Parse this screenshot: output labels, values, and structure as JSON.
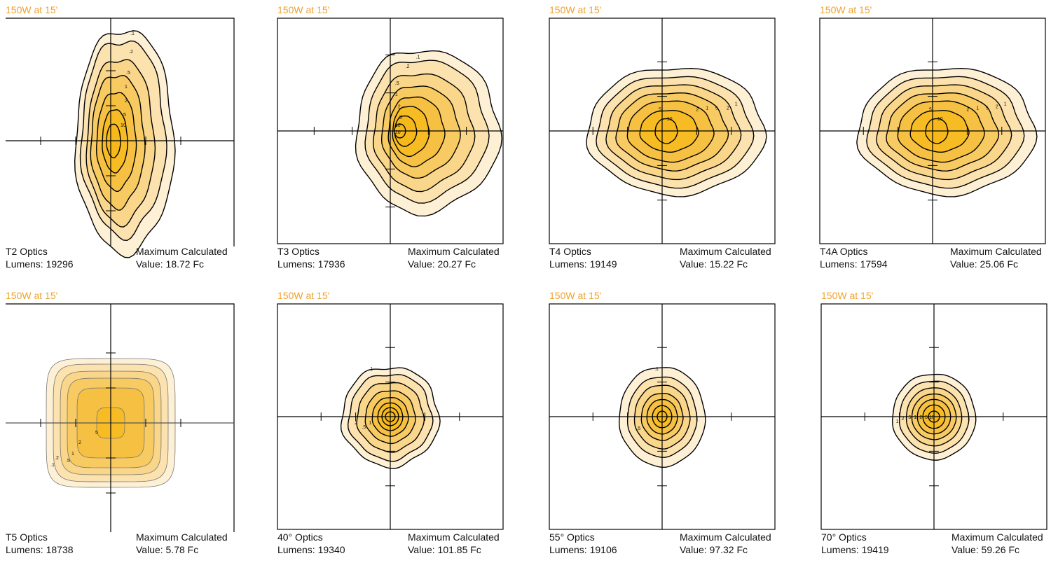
{
  "colors": {
    "heading": "#f0a22e",
    "fill_levels": [
      "#fdf0d5",
      "#fbe2ae",
      "#f9d689",
      "#f8ca62",
      "#f6c042",
      "#f7bb23",
      "#f6b81a"
    ]
  },
  "panels": [
    {
      "heading": "150W at 15'",
      "optics": "T2 Optics",
      "lumens": "Lumens: 19296",
      "max_label": "Maximum Calculated",
      "max_value": "Value: 18.72 Fc",
      "contour_labels": [
        ".1",
        ".2",
        ".5",
        "1",
        "2",
        "5",
        "10"
      ]
    },
    {
      "heading": "150W at 15'",
      "optics": "T3 Optics",
      "lumens": "Lumens: 17936",
      "max_label": "Maximum Calculated",
      "max_value": "Value: 20.27 Fc",
      "contour_labels": [
        ".1",
        ".2",
        ".5",
        "1",
        "2",
        "5",
        "10",
        "20"
      ]
    },
    {
      "heading": "150W at 15'",
      "optics": "T4 Optics",
      "lumens": "Lumens: 19149",
      "max_label": "Maximum Calculated",
      "max_value": "Value: 15.22 Fc",
      "contour_labels": [
        "1",
        "2",
        "5",
        "1",
        "2",
        "5",
        "10"
      ]
    },
    {
      "heading": "150W at 15'",
      "optics": "T4A Optics",
      "lumens": "Lumens: 17594",
      "max_label": "Maximum Calculated",
      "max_value": "Value: 25.06 Fc",
      "contour_labels": [
        "1",
        "2",
        "5",
        "1",
        "2",
        "5",
        "10"
      ]
    },
    {
      "heading": "150W at 15'",
      "optics": "T5 Optics",
      "lumens": "Lumens: 18738",
      "max_label": "Maximum Calculated",
      "max_value": "Value: 5.78 Fc",
      "contour_labels": [
        ".1",
        ".2",
        ".5",
        "1",
        "2",
        "5"
      ]
    },
    {
      "heading": "150W at 15'",
      "optics": "40° Optics",
      "lumens": "Lumens: 19340",
      "max_label": "Maximum Calculated",
      "max_value": "Value: 101.85 Fc",
      "contour_labels": [
        ".1",
        ".2",
        ".5",
        "1"
      ]
    },
    {
      "heading": "150W at 15'",
      "optics": "55° Optics",
      "lumens": "Lumens: 19106",
      "max_label": "Maximum Calculated",
      "max_value": "Value: 97.32 Fc",
      "contour_labels": [
        ".1",
        ".5"
      ]
    },
    {
      "heading": "150W at 15'",
      "optics": "70° Optics",
      "lumens": "Lumens: 19419",
      "max_label": "Maximum Calculated",
      "max_value": "Value: 59.26 Fc",
      "contour_labels": [
        "1",
        "2",
        "5",
        "1",
        "2",
        "5",
        "10"
      ]
    }
  ]
}
